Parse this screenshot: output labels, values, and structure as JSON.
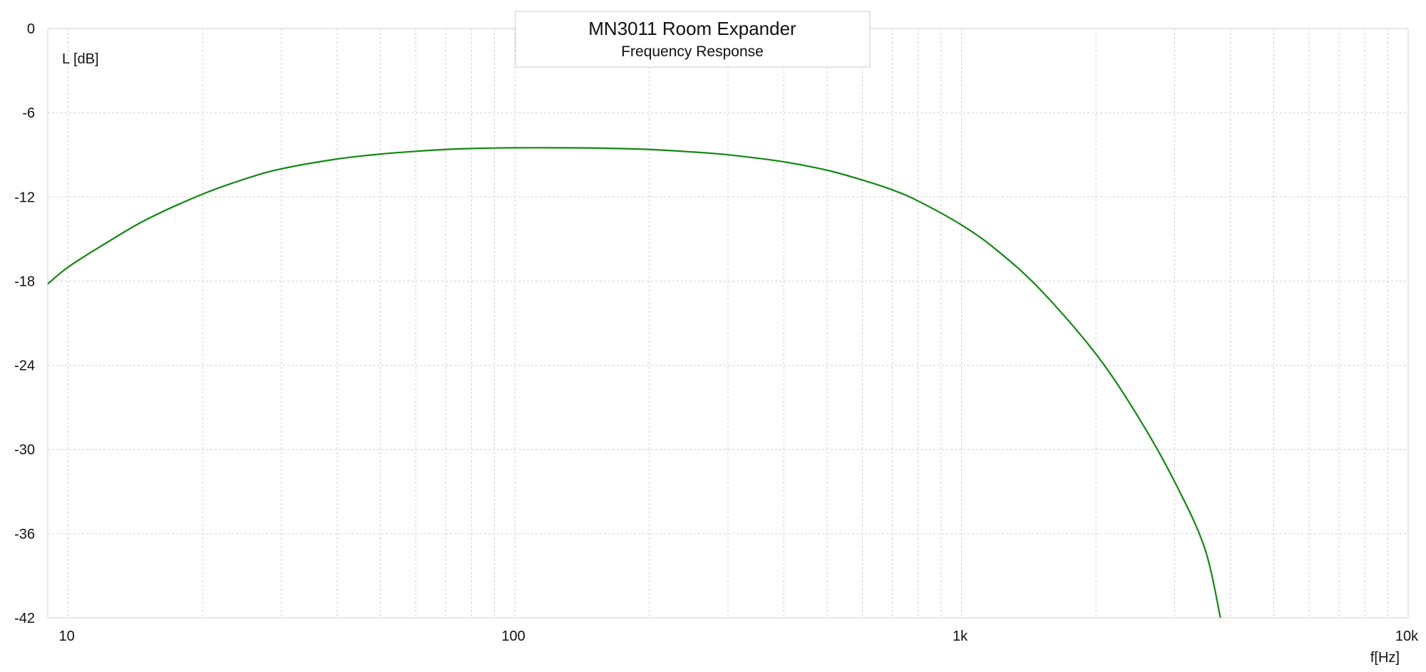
{
  "chart_data": {
    "type": "line",
    "title": "MN3011 Room Expander",
    "subtitle": "Frequency Response",
    "xlabel": "f[Hz]",
    "ylabel": "L [dB]",
    "x_scale": "log",
    "xlim": [
      9,
      10000
    ],
    "ylim": [
      -42,
      0
    ],
    "x_ticks": [
      {
        "value": 10,
        "label": "10"
      },
      {
        "value": 100,
        "label": "100"
      },
      {
        "value": 1000,
        "label": "1k"
      },
      {
        "value": 10000,
        "label": "10k"
      }
    ],
    "y_ticks": [
      {
        "value": 0,
        "label": "0"
      },
      {
        "value": -6,
        "label": "-6"
      },
      {
        "value": -12,
        "label": "-12"
      },
      {
        "value": -18,
        "label": "-18"
      },
      {
        "value": -24,
        "label": "-24"
      },
      {
        "value": -30,
        "label": "-30"
      },
      {
        "value": -36,
        "label": "-36"
      },
      {
        "value": -42,
        "label": "-42"
      }
    ],
    "grid": true,
    "series": [
      {
        "color": "#118811",
        "x": [
          9,
          10,
          12,
          15,
          20,
          25,
          30,
          40,
          50,
          60,
          70,
          80,
          100,
          120,
          150,
          200,
          250,
          300,
          400,
          500,
          600,
          700,
          800,
          1000,
          1200,
          1500,
          2000,
          2500,
          3000,
          3500,
          3800
        ],
        "y": [
          -18.2,
          -17.0,
          -15.4,
          -13.6,
          -11.8,
          -10.7,
          -10.0,
          -9.3,
          -8.95,
          -8.75,
          -8.62,
          -8.55,
          -8.5,
          -8.5,
          -8.52,
          -8.62,
          -8.8,
          -9.0,
          -9.5,
          -10.1,
          -10.8,
          -11.5,
          -12.3,
          -14.0,
          -15.8,
          -18.6,
          -23.2,
          -27.8,
          -32.3,
          -37.0,
          -42.0
        ]
      }
    ]
  }
}
